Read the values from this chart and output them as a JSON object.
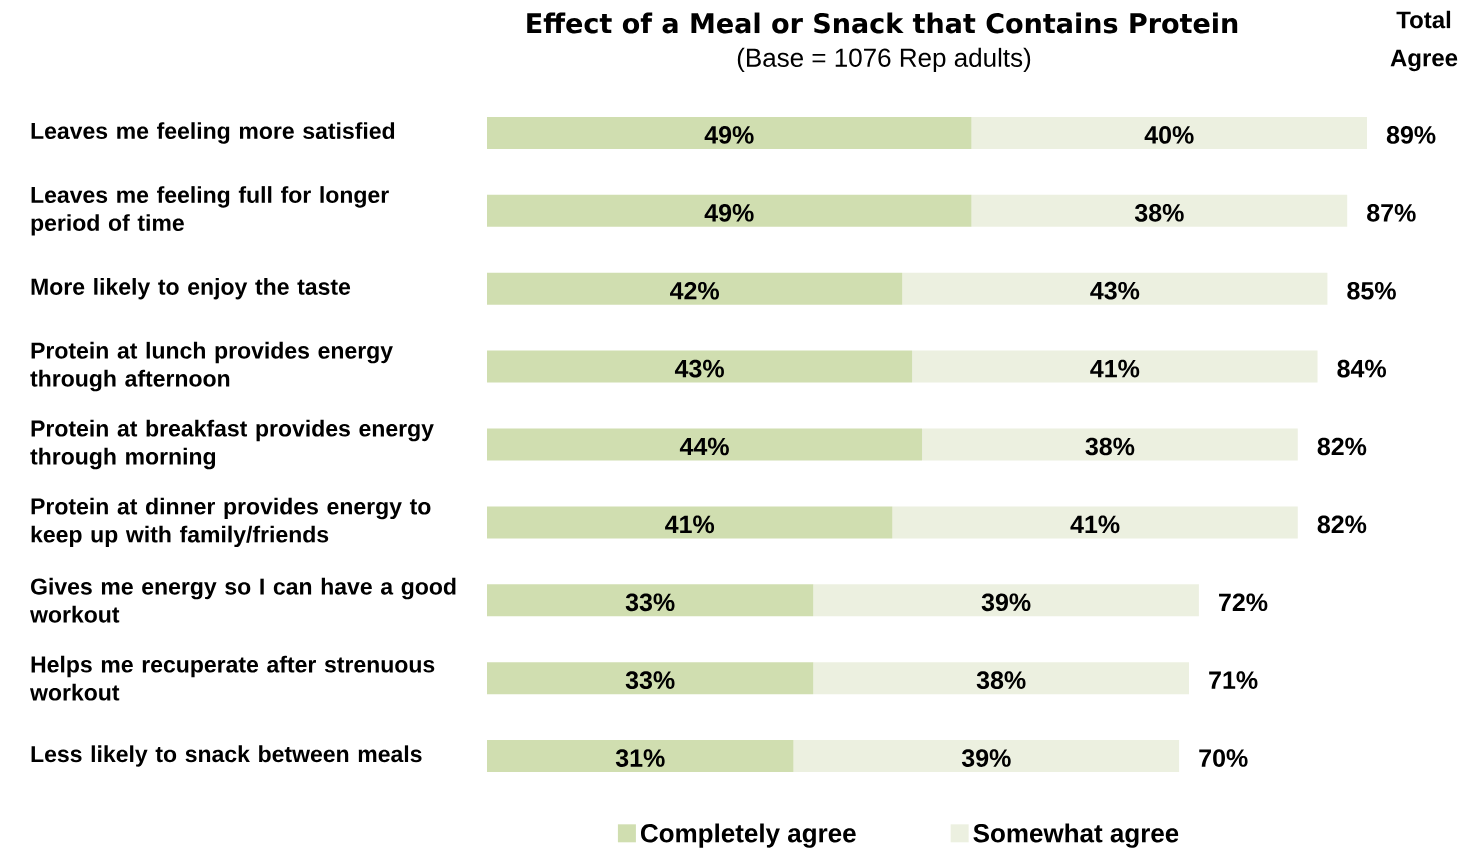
{
  "chart_data": {
    "type": "bar",
    "orientation": "horizontal",
    "stacked": true,
    "title": "Effect of a Meal or Snack that Contains Protein",
    "subtitle": "(Base = 1076 Rep adults)",
    "annotations": [
      "Total Agree"
    ],
    "categories": [
      "Leaves me feeling more satisfied",
      "Leaves me feeling full for longer period of time",
      "More likely to enjoy the taste",
      "Protein at lunch provides energy through afternoon",
      "Protein at breakfast provides energy through morning",
      "Protein at dinner provides energy to keep up with family/friends",
      "Gives me energy so I can have a good workout",
      "Helps me recuperate after strenuous workout",
      "Less likely to snack between meals"
    ],
    "series": [
      {
        "name": "Completely agree",
        "color": "#d0deb0",
        "values": [
          49,
          49,
          42,
          43,
          44,
          41,
          33,
          33,
          31
        ],
        "value_labels": [
          "49%",
          "49%",
          "42%",
          "43%",
          "44%",
          "41%",
          "33%",
          "33%",
          "31%"
        ]
      },
      {
        "name": "Somewhat agree",
        "color": "#ecf0e0",
        "values": [
          40,
          38,
          43,
          41,
          38,
          41,
          39,
          38,
          39
        ],
        "value_labels": [
          "40%",
          "38%",
          "43%",
          "41%",
          "38%",
          "41%",
          "39%",
          "38%",
          "39%"
        ]
      }
    ],
    "totals": [
      "89%",
      "87%",
      "85%",
      "84%",
      "82%",
      "82%",
      "72%",
      "71%",
      "70%"
    ],
    "legend": "bottom"
  }
}
